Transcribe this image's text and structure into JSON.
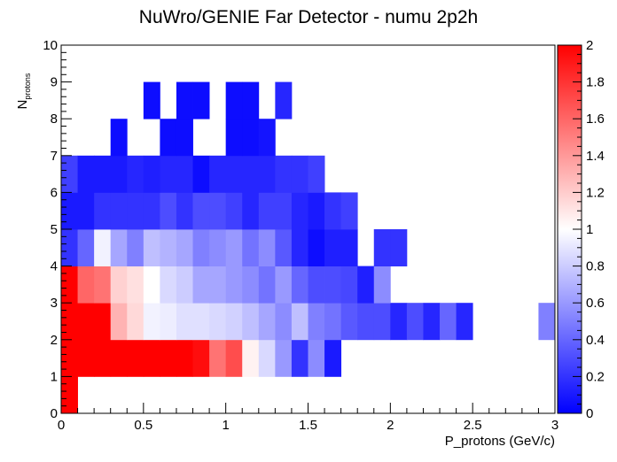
{
  "chart_data": {
    "type": "heatmap",
    "title": "NuWro/GENIE Far Detector - numu 2p2h",
    "xlabel": "P_protons (GeV/c)",
    "ylabel_main": "N",
    "ylabel_sub": "protons",
    "xlim": [
      0,
      3
    ],
    "ylim": [
      0,
      10
    ],
    "zlim": [
      0,
      2
    ],
    "x_ticks": [
      "0",
      "0.5",
      "1",
      "1.5",
      "2",
      "2.5",
      "3"
    ],
    "y_ticks": [
      "0",
      "1",
      "2",
      "3",
      "4",
      "5",
      "6",
      "7",
      "8",
      "9",
      "10"
    ],
    "z_ticks": [
      "0",
      "0.2",
      "0.4",
      "0.6",
      "0.8",
      "1",
      "1.2",
      "1.4",
      "1.6",
      "1.8",
      "2"
    ],
    "bin_width_x": 0.1,
    "bin_width_y": 1,
    "colormap": [
      {
        "v": 0,
        "color": "#0000ff"
      },
      {
        "v": 1,
        "color": "#ffffff"
      },
      {
        "v": 2,
        "color": "#ff0000"
      }
    ],
    "rows": [
      {
        "y": 0,
        "values": [
          2.0
        ]
      },
      {
        "y": 1,
        "values": [
          2.0,
          2.0,
          2.0,
          2.0,
          2.0,
          2.0,
          2.0,
          2.0,
          1.95,
          1.55,
          1.7,
          1.05,
          0.85,
          0.6,
          0.2,
          0.55,
          0.1
        ]
      },
      {
        "y": 2,
        "values": [
          2.0,
          2.0,
          2.0,
          1.3,
          1.15,
          0.95,
          0.93,
          0.88,
          0.88,
          0.85,
          0.82,
          0.75,
          0.65,
          0.55,
          0.75,
          0.5,
          0.45,
          0.35,
          0.3,
          0.3,
          0.15,
          0.3,
          0.15,
          0.4,
          0.15,
          null,
          null,
          null,
          null,
          0.5
        ]
      },
      {
        "y": 3,
        "values": [
          2.0,
          1.6,
          1.55,
          1.18,
          1.12,
          1.0,
          0.85,
          0.8,
          0.65,
          0.65,
          0.6,
          0.55,
          0.45,
          0.6,
          0.4,
          0.3,
          0.3,
          0.28,
          0.12,
          0.55
        ]
      },
      {
        "y": 4,
        "values": [
          0.2,
          0.4,
          0.95,
          0.65,
          0.5,
          0.75,
          0.7,
          0.65,
          0.5,
          0.55,
          0.6,
          0.45,
          0.55,
          0.35,
          0.15,
          0.05,
          0.12,
          0.12,
          null,
          0.2,
          0.2
        ]
      },
      {
        "y": 5,
        "values": [
          0.1,
          0.1,
          0.2,
          0.2,
          0.2,
          0.2,
          0.3,
          0.2,
          0.3,
          0.3,
          0.25,
          0.15,
          0.25,
          0.25,
          0.15,
          0.1,
          0.2,
          0.25
        ]
      },
      {
        "y": 6,
        "values": [
          0.25,
          0.1,
          0.1,
          0.1,
          0.15,
          0.12,
          0.15,
          0.15,
          0.05,
          0.15,
          0.15,
          0.15,
          0.15,
          0.2,
          0.2,
          0.25
        ]
      },
      {
        "y": 7,
        "values": [
          null,
          null,
          null,
          0.05,
          null,
          null,
          0.05,
          0.05,
          null,
          null,
          0.05,
          0.05,
          0.08
        ]
      },
      {
        "y": 8,
        "values": [
          null,
          null,
          null,
          null,
          null,
          0.05,
          null,
          0.05,
          0.05,
          null,
          0.05,
          0.05,
          null,
          0.15
        ]
      }
    ]
  }
}
